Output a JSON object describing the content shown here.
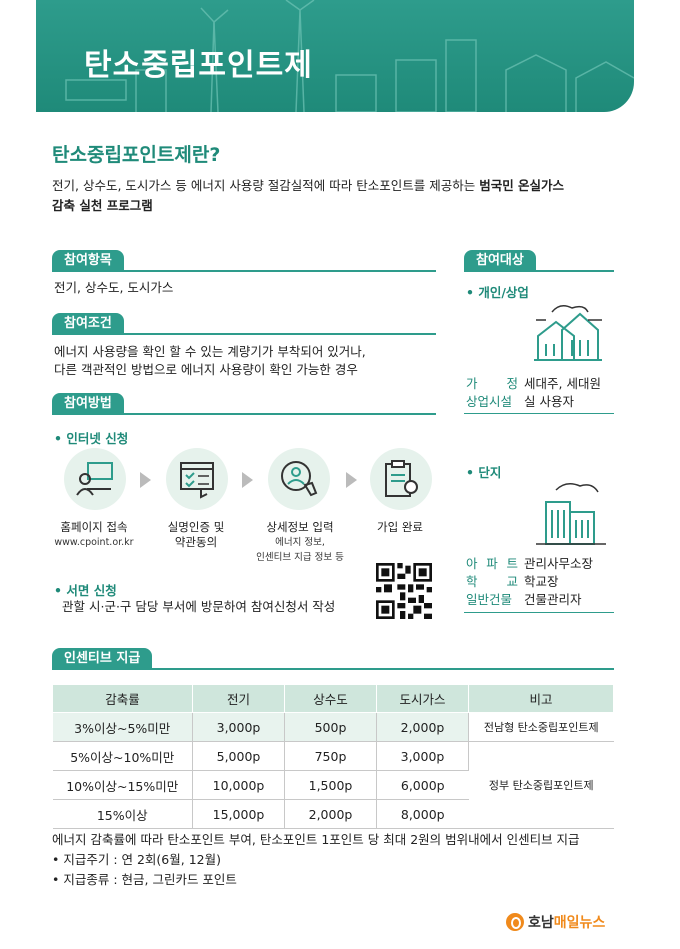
{
  "banner": {
    "title": "탄소중립포인트제"
  },
  "intro": {
    "title": "탄소중립포인트제란?",
    "text_line1": "전기, 상수도, 도시가스 등 에너지 사용량 절감실적에 따라 탄소포인트를 제공하는 ",
    "text_bold1": "범국민 온실가스",
    "text_bold2": "감축 실천 프로그램"
  },
  "items": {
    "header": "참여항목",
    "text": "전기, 상수도, 도시가스"
  },
  "conditions": {
    "header": "참여조건",
    "line1": "에너지 사용량을 확인 할 수 있는 계량기가 부착되어 있거나,",
    "line2": "다른 객관적인 방법으로 에너지 사용량이 확인 가능한 경우"
  },
  "method": {
    "header": "참여방법",
    "online_label": "• 인터넷 신청",
    "steps": [
      {
        "label": "홈페이지 접속",
        "sub": "www.cpoint.or.kr",
        "icon": "computer-user-icon"
      },
      {
        "label": "실명인증 및",
        "sub": "약관동의",
        "icon": "form-check-icon"
      },
      {
        "label": "상세정보 입력",
        "sub": "에너지 정보,",
        "sub2": "인센티브 지급 정보 등",
        "icon": "user-search-icon"
      },
      {
        "label": "가입 완료",
        "sub": "",
        "icon": "clipboard-medal-icon"
      }
    ],
    "written_label": "• 서면 신청",
    "written_text": "관할 시·군·구 담당 부서에 방문하여 참여신청서 작성"
  },
  "target": {
    "header": "참여대상",
    "individual_label": "• 개인/상업",
    "individual_rows": [
      {
        "k": "가 정",
        "v": "세대주, 세대원"
      },
      {
        "k": "상업시설",
        "v": "실 사용자"
      }
    ],
    "complex_label": "• 단지",
    "complex_rows": [
      {
        "k": "아 파 트",
        "v": "관리사무소장"
      },
      {
        "k": "학 교",
        "v": "학교장"
      },
      {
        "k": "일반건물",
        "v": "건물관리자"
      }
    ]
  },
  "incentive": {
    "header": "인센티브 지급",
    "columns": [
      "감축률",
      "전기",
      "상수도",
      "도시가스",
      "비고"
    ],
    "rows": [
      [
        "3%이상~5%미만",
        "3,000p",
        "500p",
        "2,000p"
      ],
      [
        "5%이상~10%미만",
        "5,000p",
        "750p",
        "3,000p"
      ],
      [
        "10%이상~15%미만",
        "10,000p",
        "1,500p",
        "6,000p"
      ],
      [
        "15%이상",
        "15,000p",
        "2,000p",
        "8,000p"
      ]
    ],
    "note_row1": "전남형 탄소중립포인트제",
    "note_rest": "정부 탄소중립포인트제",
    "foot1": "에너지 감축률에 따라 탄소포인트 부여, 탄소포인트 1포인트 당 최대 2원의 범위내에서 인센티브 지급",
    "foot2": "• 지급주기 : 연 2회(6월, 12월)",
    "foot3": "• 지급종류 : 현금, 그린카드 포인트"
  },
  "logo": {
    "part1": "호남",
    "part2": "매일뉴스"
  },
  "colors": {
    "primary": "#2e9c8c",
    "accent": "#1f8a79",
    "light": "#e6f2ec",
    "orange": "#f08a1c"
  }
}
